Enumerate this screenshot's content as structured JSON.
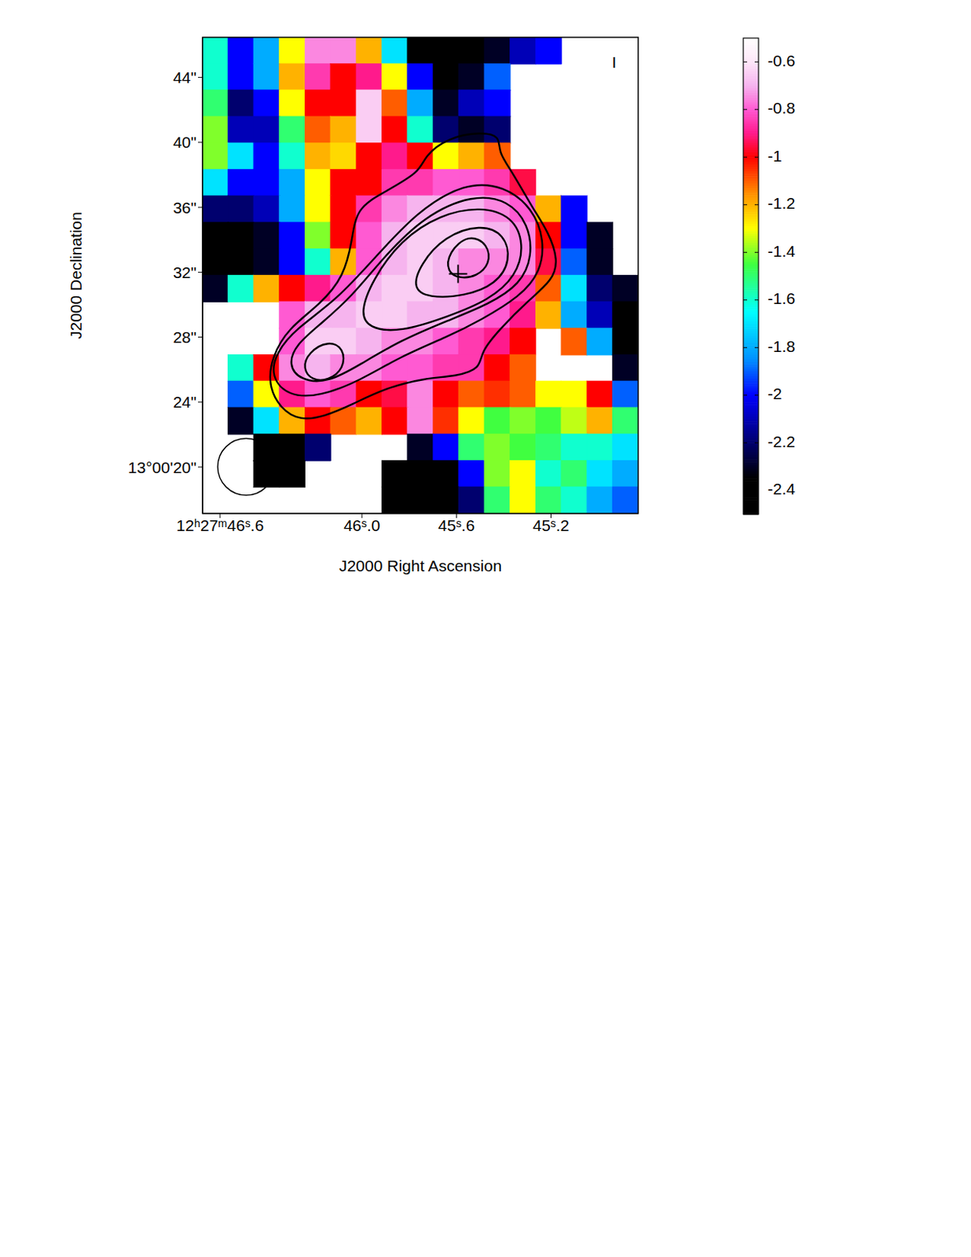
{
  "chart_data": {
    "type": "heatmap",
    "xlabel": "J2000 Right Ascension",
    "ylabel": "J2000 Declination",
    "xlim": [
      44.831,
      46.674
    ],
    "ylim": [
      17.14,
      46.47
    ],
    "xticks": [
      {
        "value": 46.6,
        "label": "12ʰ27ᵐ46ˢ.6"
      },
      {
        "value": 46.0,
        "label": "46ˢ.0"
      },
      {
        "value": 45.6,
        "label": "45ˢ.6"
      },
      {
        "value": 45.2,
        "label": "45ˢ.2"
      }
    ],
    "yticks": [
      {
        "value": 20,
        "label": "13°00'20\""
      },
      {
        "value": 24,
        "label": "24\""
      },
      {
        "value": 28,
        "label": "28\""
      },
      {
        "value": 32,
        "label": "32\""
      },
      {
        "value": 36,
        "label": "36\""
      },
      {
        "value": 40,
        "label": "40\""
      },
      {
        "value": 44,
        "label": "44\""
      }
    ],
    "annotations": [
      "I"
    ],
    "beam_diameter": 3.5,
    "markers": [
      {
        "x": 45.593,
        "y": 31.9
      }
    ],
    "colorbar": {
      "range": [
        -2.5,
        -0.5
      ],
      "ticks": [
        -0.6,
        -0.8,
        -1,
        -1.2,
        -1.4,
        -1.6,
        -1.8,
        -2,
        -2.2,
        -2.4
      ]
    },
    "cells": {
      "x": [
        46.62,
        46.512,
        46.403,
        46.295,
        46.186,
        46.078,
        45.969,
        45.861,
        45.753,
        45.644,
        45.536,
        45.427,
        45.319,
        45.21,
        45.102,
        44.993,
        44.885
      ],
      "y": [
        45.65,
        44.02,
        42.4,
        40.77,
        39.14,
        37.51,
        35.88,
        34.25,
        32.62,
        30.99,
        29.36,
        27.73,
        26.1,
        24.47,
        22.84,
        21.21,
        19.58,
        17.95
      ],
      "values": [
        [
          -1.6,
          -2.0,
          -1.8,
          -1.3,
          -0.75,
          -0.75,
          -1.2,
          -1.7,
          -2.4,
          -2.4,
          -2.4,
          -2.3,
          -2.1,
          -2.0,
          null,
          null,
          null
        ],
        [
          -1.6,
          -2.0,
          -1.8,
          -1.2,
          -0.85,
          -1.0,
          -0.9,
          -1.3,
          -2.0,
          -2.4,
          -2.3,
          -1.9,
          null,
          null,
          null,
          null,
          null
        ],
        [
          -1.5,
          -2.2,
          -2.0,
          -1.3,
          -1.0,
          -1.0,
          -0.65,
          -1.1,
          -1.8,
          -2.3,
          -2.1,
          -2.0,
          null,
          null,
          null,
          null,
          null
        ],
        [
          -1.4,
          -2.1,
          -2.1,
          -1.5,
          -1.1,
          -1.2,
          -0.65,
          -1.0,
          -1.6,
          -2.2,
          -2.3,
          -2.2,
          null,
          null,
          null,
          null,
          null
        ],
        [
          -1.4,
          -1.7,
          -2.0,
          -1.6,
          -1.2,
          -1.25,
          -1.0,
          -0.9,
          -1.0,
          -1.3,
          -1.2,
          -1.1,
          null,
          null,
          null,
          null,
          null
        ],
        [
          -1.7,
          -2.0,
          -2.0,
          -1.8,
          -1.3,
          -1.0,
          -1.0,
          -0.85,
          -0.85,
          -0.8,
          -0.8,
          -0.85,
          -0.95,
          null,
          null,
          null,
          null
        ],
        [
          -2.2,
          -2.2,
          -2.1,
          -1.8,
          -1.3,
          -1.0,
          -0.85,
          -0.75,
          -0.7,
          -0.7,
          -0.7,
          -0.75,
          -0.8,
          -1.2,
          -2.0,
          null,
          null
        ],
        [
          -2.4,
          -2.4,
          -2.3,
          -2.0,
          -1.4,
          -1.0,
          -0.8,
          -0.7,
          -0.65,
          -0.65,
          -0.65,
          -0.7,
          -0.75,
          -1.0,
          -2.0,
          -2.3,
          null
        ],
        [
          -2.4,
          -2.4,
          -2.3,
          -2.0,
          -1.6,
          -1.2,
          -0.8,
          -0.7,
          -0.65,
          -0.7,
          -0.75,
          -0.75,
          -0.75,
          -0.95,
          -1.9,
          -2.3,
          null
        ],
        [
          -2.3,
          -1.6,
          -1.2,
          -1.0,
          -0.9,
          -0.8,
          -0.7,
          -0.65,
          -0.65,
          -0.7,
          -0.75,
          -0.8,
          -0.85,
          -1.1,
          -1.7,
          -2.2,
          -2.3
        ],
        [
          null,
          null,
          null,
          -0.8,
          -0.7,
          -0.7,
          -0.65,
          -0.65,
          -0.7,
          -0.7,
          -0.75,
          -0.8,
          -0.9,
          -1.2,
          -1.8,
          -2.1,
          -2.4
        ],
        [
          null,
          null,
          null,
          -0.8,
          -0.65,
          -0.65,
          -0.7,
          -0.75,
          -0.75,
          -0.8,
          -0.85,
          -0.9,
          -1.0,
          null,
          -1.1,
          -1.8,
          -2.4
        ],
        [
          null,
          -1.6,
          -1.0,
          -0.75,
          -0.7,
          -0.75,
          -0.75,
          -0.8,
          -0.8,
          -0.85,
          -0.85,
          -1.0,
          -1.1,
          null,
          null,
          null,
          -2.3
        ],
        [
          null,
          -1.9,
          -1.3,
          -0.9,
          -0.8,
          -0.85,
          -1.0,
          -0.95,
          -0.75,
          -1.0,
          -1.1,
          -1.05,
          -1.1,
          -1.3,
          -1.3,
          -1.0,
          -1.9
        ],
        [
          null,
          -2.3,
          -1.7,
          -1.2,
          -1.0,
          -1.1,
          -1.2,
          -1.0,
          -0.75,
          -1.05,
          -1.3,
          -1.45,
          -1.4,
          -1.45,
          -1.35,
          -1.2,
          -1.5
        ],
        [
          null,
          null,
          -2.4,
          -2.4,
          -2.2,
          null,
          null,
          null,
          -2.3,
          -2.0,
          -1.5,
          -1.4,
          -1.45,
          -1.5,
          -1.6,
          -1.6,
          -1.7
        ],
        [
          null,
          null,
          -2.4,
          -2.4,
          null,
          null,
          null,
          -2.4,
          -2.4,
          -2.4,
          -2.0,
          -1.4,
          -1.3,
          -1.6,
          -1.5,
          -1.7,
          -1.8
        ],
        [
          null,
          null,
          null,
          null,
          null,
          null,
          null,
          -2.4,
          -2.4,
          -2.4,
          -2.2,
          -1.5,
          -1.3,
          -1.5,
          -1.6,
          -1.8,
          -1.9
        ]
      ]
    },
    "contours": [
      [
        {
          "x": 45.753,
          "y": 38.17
        },
        {
          "x": 45.736,
          "y": 39.16
        },
        {
          "x": 45.634,
          "y": 40.3
        },
        {
          "x": 45.498,
          "y": 40.64
        },
        {
          "x": 45.414,
          "y": 40.4
        },
        {
          "x": 45.424,
          "y": 39.41
        },
        {
          "x": 45.363,
          "y": 38.17
        },
        {
          "x": 45.278,
          "y": 35.95
        },
        {
          "x": 45.21,
          "y": 34.47
        },
        {
          "x": 45.169,
          "y": 32.74
        },
        {
          "x": 45.193,
          "y": 31.51
        },
        {
          "x": 45.295,
          "y": 30.27
        },
        {
          "x": 45.414,
          "y": 28.54
        },
        {
          "x": 45.498,
          "y": 27.06
        },
        {
          "x": 45.498,
          "y": 26.07
        },
        {
          "x": 45.6,
          "y": 25.58
        },
        {
          "x": 45.736,
          "y": 25.48
        },
        {
          "x": 45.905,
          "y": 24.84
        },
        {
          "x": 46.041,
          "y": 23.85
        },
        {
          "x": 46.159,
          "y": 23.11
        },
        {
          "x": 46.261,
          "y": 22.86
        },
        {
          "x": 46.346,
          "y": 23.6
        },
        {
          "x": 46.397,
          "y": 25.09
        },
        {
          "x": 46.38,
          "y": 26.81
        },
        {
          "x": 46.312,
          "y": 28.54
        },
        {
          "x": 46.176,
          "y": 30.02
        },
        {
          "x": 46.075,
          "y": 31.75
        },
        {
          "x": 46.041,
          "y": 33.98
        },
        {
          "x": 46.024,
          "y": 35.95
        },
        {
          "x": 45.905,
          "y": 36.94
        }
      ],
      [
        {
          "x": 45.566,
          "y": 37.53
        },
        {
          "x": 45.397,
          "y": 37.33
        },
        {
          "x": 45.278,
          "y": 35.95
        },
        {
          "x": 45.227,
          "y": 33.98
        },
        {
          "x": 45.244,
          "y": 32.0
        },
        {
          "x": 45.329,
          "y": 30.52
        },
        {
          "x": 45.498,
          "y": 29.04
        },
        {
          "x": 45.634,
          "y": 28.05
        },
        {
          "x": 45.837,
          "y": 26.81
        },
        {
          "x": 46.007,
          "y": 25.33
        },
        {
          "x": 46.176,
          "y": 24.35
        },
        {
          "x": 46.312,
          "y": 24.35
        },
        {
          "x": 46.386,
          "y": 25.58
        },
        {
          "x": 46.363,
          "y": 27.06
        },
        {
          "x": 46.278,
          "y": 28.54
        },
        {
          "x": 46.108,
          "y": 30.27
        },
        {
          "x": 45.939,
          "y": 32.99
        },
        {
          "x": 45.769,
          "y": 35.7
        }
      ],
      [
        {
          "x": 45.532,
          "y": 36.79
        },
        {
          "x": 45.38,
          "y": 36.44
        },
        {
          "x": 45.295,
          "y": 34.96
        },
        {
          "x": 45.278,
          "y": 32.99
        },
        {
          "x": 45.329,
          "y": 31.26
        },
        {
          "x": 45.464,
          "y": 30.02
        },
        {
          "x": 45.634,
          "y": 29.04
        },
        {
          "x": 45.837,
          "y": 27.8
        },
        {
          "x": 46.007,
          "y": 26.32
        },
        {
          "x": 46.142,
          "y": 25.19
        },
        {
          "x": 46.261,
          "y": 25.33
        },
        {
          "x": 46.312,
          "y": 26.32
        },
        {
          "x": 46.278,
          "y": 27.56
        },
        {
          "x": 46.176,
          "y": 28.79
        },
        {
          "x": 46.041,
          "y": 30.52
        },
        {
          "x": 45.905,
          "y": 32.99
        },
        {
          "x": 45.736,
          "y": 35.46
        }
      ],
      [
        {
          "x": 45.498,
          "y": 36.05
        },
        {
          "x": 45.363,
          "y": 35.46
        },
        {
          "x": 45.312,
          "y": 33.73
        },
        {
          "x": 45.346,
          "y": 31.75
        },
        {
          "x": 45.464,
          "y": 30.27
        },
        {
          "x": 45.634,
          "y": 29.28
        },
        {
          "x": 45.837,
          "y": 28.3
        },
        {
          "x": 45.973,
          "y": 28.54
        },
        {
          "x": 46.007,
          "y": 29.53
        },
        {
          "x": 45.956,
          "y": 31.51
        },
        {
          "x": 45.837,
          "y": 33.98
        },
        {
          "x": 45.668,
          "y": 35.56
        }
      ],
      [
        {
          "x": 45.498,
          "y": 34.96
        },
        {
          "x": 45.397,
          "y": 34.37
        },
        {
          "x": 45.369,
          "y": 32.74
        },
        {
          "x": 45.431,
          "y": 31.26
        },
        {
          "x": 45.566,
          "y": 30.52
        },
        {
          "x": 45.719,
          "y": 30.42
        },
        {
          "x": 45.786,
          "y": 31.01
        },
        {
          "x": 45.753,
          "y": 32.49
        },
        {
          "x": 45.651,
          "y": 34.22
        }
      ],
      [
        {
          "x": 45.549,
          "y": 34.37
        },
        {
          "x": 45.464,
          "y": 33.73
        },
        {
          "x": 45.458,
          "y": 32.49
        },
        {
          "x": 45.515,
          "y": 31.75
        },
        {
          "x": 45.583,
          "y": 31.6
        },
        {
          "x": 45.641,
          "y": 32.0
        },
        {
          "x": 45.634,
          "y": 33.23
        }
      ],
      [
        {
          "x": 46.142,
          "y": 27.8
        },
        {
          "x": 46.075,
          "y": 27.31
        },
        {
          "x": 46.075,
          "y": 26.07
        },
        {
          "x": 46.142,
          "y": 25.33
        },
        {
          "x": 46.21,
          "y": 25.33
        },
        {
          "x": 46.251,
          "y": 26.07
        },
        {
          "x": 46.227,
          "y": 27.06
        }
      ]
    ]
  }
}
